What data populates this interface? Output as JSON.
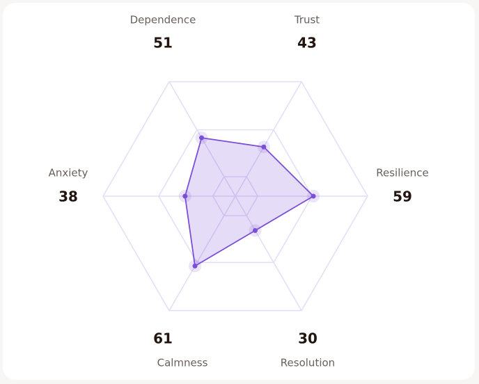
{
  "chart_data": {
    "type": "radar",
    "categories": [
      "Dependence",
      "Trust",
      "Resilience",
      "Resolution",
      "Calmness",
      "Anxiety"
    ],
    "values": [
      51,
      43,
      59,
      30,
      61,
      38
    ],
    "color": "#7b4fd6",
    "rlim": [
      0,
      100
    ]
  }
}
